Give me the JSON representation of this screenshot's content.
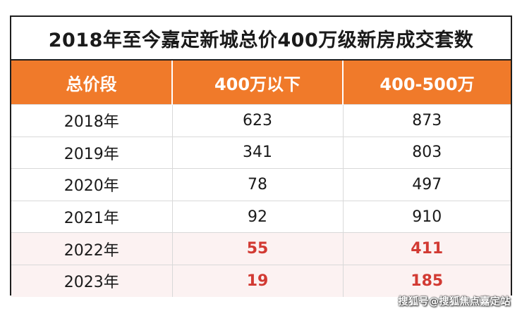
{
  "title": "2018年至今嘉定新城总价400万级新房成交套数",
  "headers": [
    "总价段",
    "400万以下",
    "400-500万"
  ],
  "rows": [
    {
      "year": "2018年",
      "under_400": "623",
      "r400_500": "873"
    },
    {
      "year": "2019年",
      "under_400": "341",
      "r400_500": "803"
    },
    {
      "year": "2020年",
      "under_400": "78",
      "r400_500": "497"
    },
    {
      "year": "2021年",
      "under_400": "92",
      "r400_500": "910"
    },
    {
      "year": "2022年",
      "under_400": "55",
      "r400_500": "411"
    },
    {
      "year": "2023年",
      "under_400": "19",
      "r400_500": "185"
    }
  ],
  "watermark": "搜狐号@搜狐焦点嘉定站",
  "colors": {
    "header_bg": "#f07a2a",
    "highlight_text": "#d23a33",
    "highlight_row_bg": "#fcf2f2"
  }
}
